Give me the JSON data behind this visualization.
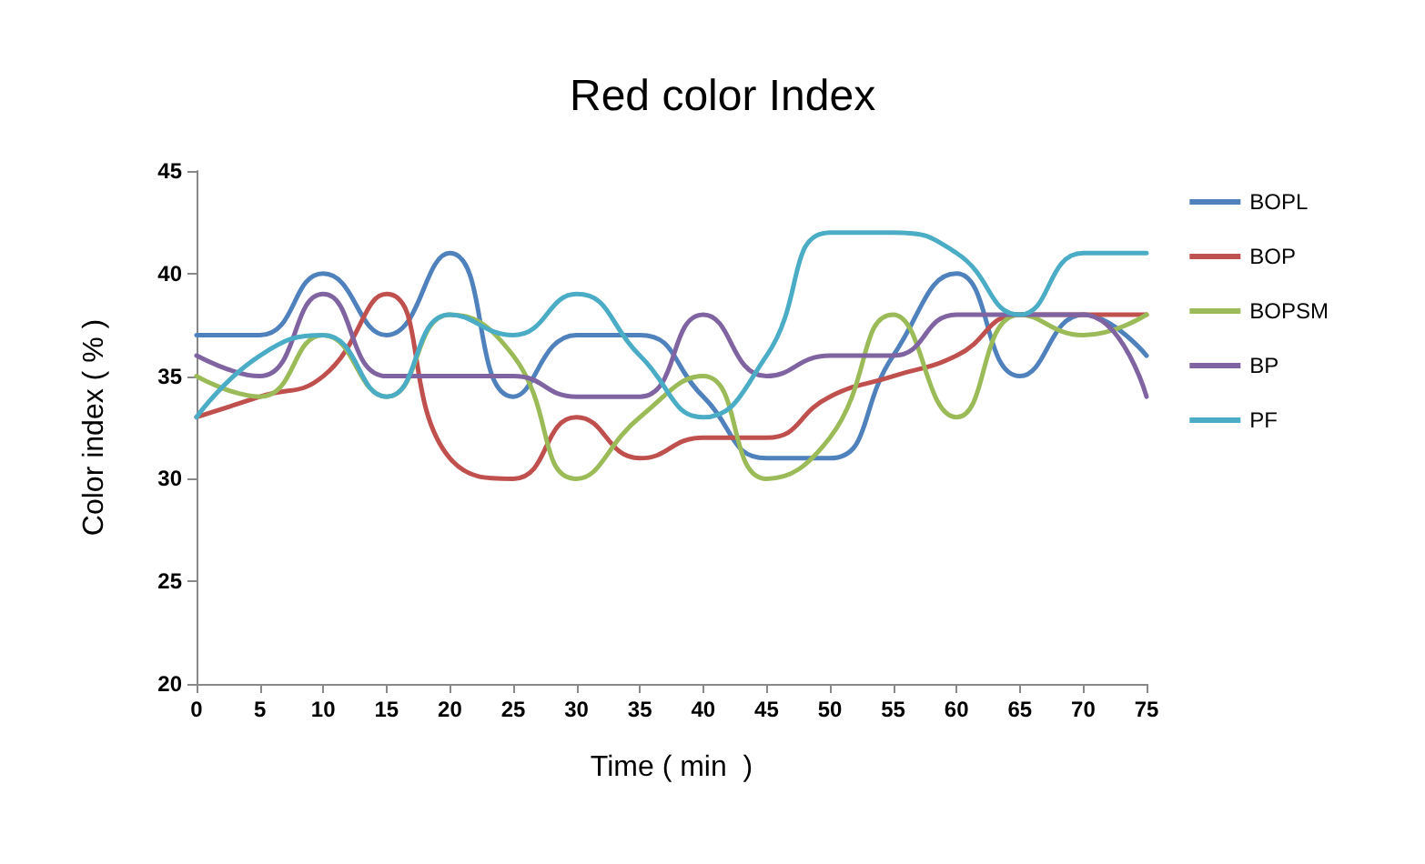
{
  "chart_data": {
    "type": "line",
    "title": "Red color Index",
    "xlabel": "Time ( min  )",
    "ylabel": "Color index ( % )",
    "x": [
      0,
      5,
      10,
      15,
      20,
      25,
      30,
      35,
      40,
      45,
      50,
      55,
      60,
      65,
      70,
      75
    ],
    "xlim": [
      0,
      75
    ],
    "xticks": [
      0,
      5,
      10,
      15,
      20,
      25,
      30,
      35,
      40,
      45,
      50,
      55,
      60,
      65,
      70,
      75
    ],
    "ylim": [
      20,
      45
    ],
    "yticks": [
      20,
      25,
      30,
      35,
      40,
      45
    ],
    "grid": false,
    "legend": "right",
    "marker": "none",
    "line_style": "solid",
    "series": [
      {
        "name": "BOPL",
        "color": "#4f81bd",
        "values": [
          37,
          37,
          40,
          37,
          41,
          34,
          37,
          37,
          34,
          31,
          31,
          36,
          40,
          35,
          38,
          36
        ]
      },
      {
        "name": "BOP",
        "color": "#c0504d",
        "values": [
          33,
          34,
          35,
          39,
          31,
          30,
          33,
          31,
          32,
          32,
          34,
          35,
          36,
          38,
          38,
          38
        ]
      },
      {
        "name": "BOPSM",
        "color": "#9bbb59",
        "values": [
          35,
          34,
          37,
          34,
          38,
          36,
          30,
          33,
          35,
          30,
          32,
          38,
          33,
          38,
          37,
          38
        ]
      },
      {
        "name": "BP",
        "color": "#8064a2",
        "values": [
          36,
          35,
          39,
          35,
          35,
          35,
          34,
          34,
          38,
          35,
          36,
          36,
          38,
          38,
          38,
          34
        ]
      },
      {
        "name": "PF",
        "color": "#4bacc6",
        "values": [
          33,
          36,
          37,
          34,
          38,
          37,
          39,
          36,
          33,
          36,
          42,
          42,
          41,
          38,
          41,
          41
        ]
      }
    ]
  }
}
